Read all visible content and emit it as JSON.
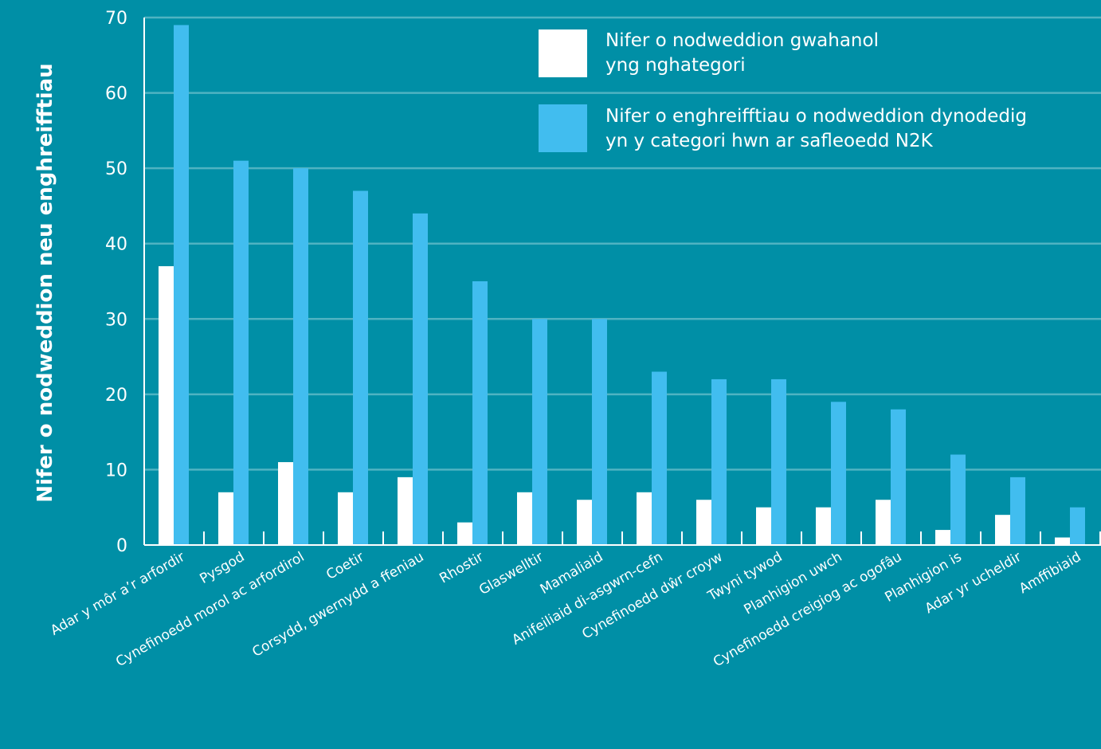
{
  "chart_data": {
    "type": "bar",
    "title": "",
    "xlabel": "",
    "ylabel": "Nifer o nodweddion neu enghreifftiau",
    "ylim": [
      0,
      70
    ],
    "yticks": [
      0,
      10,
      20,
      30,
      40,
      50,
      60,
      70
    ],
    "grid": true,
    "legend_position": "top-right",
    "categories": [
      "Adar y môr a’r arfordir",
      "Pysgod",
      "Cynefinoedd morol ac arfordirol",
      "Coetir",
      "Corsydd, gwernydd a ffeniau",
      "Rhostir",
      "Glaswelltir",
      "Mamaliaid",
      "Anifeiliaid di-asgwrn-cefn",
      "Cynefinoedd dŵr croyw",
      "Twyni tywod",
      "Planhigion uwch",
      "Cynefinoedd creigiog ac ogofâu",
      "Planhigion is",
      "Adar yr ucheldir",
      "Amffibiaid"
    ],
    "series": [
      {
        "name": "Nifer o nodweddion gwahanol yng nghategori",
        "legend_lines": [
          "Nifer o nodweddion gwahanol",
          "yng nghategori"
        ],
        "color": "#ffffff",
        "values": [
          37,
          7,
          11,
          7,
          9,
          3,
          7,
          6,
          7,
          6,
          5,
          5,
          6,
          2,
          4,
          1
        ]
      },
      {
        "name": "Nifer o enghreifftiau o nodweddion dynodedig yn y categori hwn ar safleoedd N2K",
        "legend_lines": [
          "Nifer o enghreifftiau o nodweddion dynodedig",
          "yn y categori hwn ar safleoedd N2K"
        ],
        "color": "#41bdef",
        "values": [
          69,
          51,
          50,
          47,
          44,
          35,
          30,
          30,
          23,
          22,
          22,
          19,
          18,
          12,
          9,
          5
        ]
      }
    ]
  },
  "colors": {
    "background": "#008fa6",
    "gridline": "#4fb3c2",
    "axis": "#ffffff"
  }
}
